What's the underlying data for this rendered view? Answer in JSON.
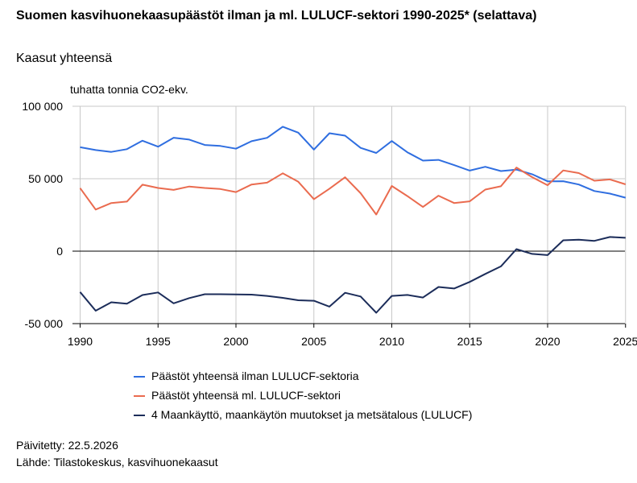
{
  "chart_data": {
    "type": "line",
    "title": "Suomen kasvihuonekaasupäästöt ilman ja ml. LULUCF-sektori 1990-2025* (selattava)",
    "subtitle": "Kaasut yhteensä",
    "ylabel": "tuhatta tonnia CO2-ekv.",
    "xlabel": "",
    "x": [
      1990,
      1991,
      1992,
      1993,
      1994,
      1995,
      1996,
      1997,
      1998,
      1999,
      2000,
      2001,
      2002,
      2003,
      2004,
      2005,
      2006,
      2007,
      2008,
      2009,
      2010,
      2011,
      2012,
      2013,
      2014,
      2015,
      2016,
      2017,
      2018,
      2019,
      2020,
      2021,
      2022,
      2023,
      2024,
      2025
    ],
    "xlim": [
      1990,
      2025.5
    ],
    "ylim": [
      -50000,
      100000
    ],
    "x_ticks": [
      {
        "value": 1990,
        "label": "1990"
      },
      {
        "value": 1995,
        "label": "1995"
      },
      {
        "value": 2000,
        "label": "2000"
      },
      {
        "value": 2005,
        "label": "2005"
      },
      {
        "value": 2010,
        "label": "2010"
      },
      {
        "value": 2015,
        "label": "2015"
      },
      {
        "value": 2020,
        "label": "2020"
      },
      {
        "value": 2025,
        "label": "2025"
      }
    ],
    "y_ticks": [
      {
        "value": 100000,
        "label": "100 000"
      },
      {
        "value": 50000,
        "label": "50 000"
      },
      {
        "value": 0,
        "label": "0"
      },
      {
        "value": -50000,
        "label": "-50 000"
      }
    ],
    "grid": true,
    "legend_position": "bottom",
    "series": [
      {
        "name": "Päästöt yhteensä ilman LULUCF-sektoria",
        "color": "#2f6ee0",
        "values": [
          71700,
          69800,
          68500,
          70400,
          76200,
          72100,
          78300,
          77000,
          73300,
          72600,
          70700,
          75900,
          78200,
          85900,
          81800,
          70100,
          81400,
          79700,
          71300,
          67800,
          76000,
          68200,
          62500,
          63000,
          59400,
          55600,
          58200,
          55300,
          56300,
          53100,
          48200,
          48300,
          46000,
          41500,
          39700,
          36900
        ]
      },
      {
        "name": "Päästöt yhteensä ml. LULUCF-sektori",
        "color": "#ea6b4f",
        "values": [
          43500,
          28700,
          33200,
          34200,
          45900,
          43600,
          42300,
          44600,
          43600,
          42900,
          40800,
          46000,
          47300,
          53700,
          47900,
          35900,
          43100,
          51000,
          40000,
          25300,
          45000,
          38000,
          30500,
          38300,
          33200,
          34400,
          42500,
          44800,
          57700,
          51100,
          45500,
          55700,
          53900,
          48600,
          49500,
          46100
        ]
      },
      {
        "name": "4 Maankäyttö, maankäytön muutokset ja metsätalous (LULUCF)",
        "color": "#1c2d5a",
        "values": [
          -28200,
          -41100,
          -35300,
          -36200,
          -30300,
          -28500,
          -36000,
          -32400,
          -29700,
          -29700,
          -29900,
          -30000,
          -30900,
          -32200,
          -33900,
          -34200,
          -38300,
          -28700,
          -31300,
          -42500,
          -30900,
          -30200,
          -32000,
          -24700,
          -25800,
          -21200,
          -15700,
          -10500,
          1400,
          -1900,
          -2700,
          7500,
          7900,
          7100,
          9800,
          9200
        ]
      }
    ]
  },
  "footer": {
    "updated": "Päivitetty: 22.5.2026",
    "source": "Lähde: Tilastokeskus, kasvihuonekaasut"
  }
}
